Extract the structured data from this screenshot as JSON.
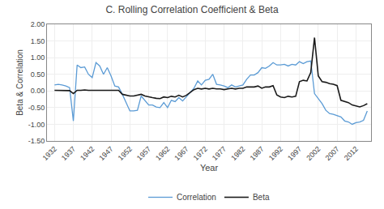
{
  "chart_data": {
    "type": "line",
    "title": "C. Rolling Correlation Coefficient & Beta",
    "xlabel": "Year",
    "ylabel": "Beta & Correlation",
    "x": [
      1932,
      1933,
      1934,
      1935,
      1936,
      1937,
      1938,
      1939,
      1940,
      1941,
      1942,
      1943,
      1944,
      1945,
      1946,
      1947,
      1948,
      1949,
      1950,
      1951,
      1952,
      1953,
      1954,
      1955,
      1956,
      1957,
      1958,
      1959,
      1960,
      1961,
      1962,
      1963,
      1964,
      1965,
      1966,
      1967,
      1968,
      1969,
      1970,
      1971,
      1972,
      1973,
      1974,
      1975,
      1976,
      1977,
      1978,
      1979,
      1980,
      1981,
      1982,
      1983,
      1984,
      1985,
      1986,
      1987,
      1988,
      1989,
      1990,
      1991,
      1992,
      1993,
      1994,
      1995,
      1996,
      1997,
      1998,
      1999,
      2000,
      2001,
      2002,
      2003,
      2004,
      2005,
      2006,
      2007,
      2008,
      2009,
      2010,
      2011,
      2012,
      2013,
      2014,
      2015
    ],
    "series": [
      {
        "name": "Correlation",
        "color": "#5b9bd5",
        "values": [
          0.18,
          0.2,
          0.18,
          0.15,
          0.1,
          -0.9,
          0.78,
          0.7,
          0.72,
          0.5,
          0.4,
          0.85,
          0.75,
          0.5,
          0.7,
          0.45,
          0.15,
          0.12,
          -0.1,
          -0.35,
          -0.6,
          -0.6,
          -0.58,
          -0.15,
          -0.3,
          -0.42,
          -0.42,
          -0.48,
          -0.5,
          -0.35,
          -0.5,
          -0.28,
          -0.32,
          -0.2,
          -0.3,
          -0.18,
          -0.05,
          0.08,
          0.3,
          0.18,
          0.32,
          0.35,
          0.5,
          0.2,
          0.18,
          0.15,
          0.1,
          0.18,
          0.12,
          0.15,
          0.18,
          0.35,
          0.48,
          0.48,
          0.55,
          0.7,
          0.68,
          0.75,
          0.85,
          0.78,
          0.78,
          0.8,
          0.75,
          0.8,
          0.78,
          0.88,
          0.82,
          0.88,
          0.9,
          -0.08,
          -0.22,
          -0.38,
          -0.58,
          -0.68,
          -0.7,
          -0.75,
          -0.78,
          -0.9,
          -0.93,
          -1.0,
          -0.95,
          -0.93,
          -0.88,
          -0.6
        ]
      },
      {
        "name": "Beta",
        "color": "#1a1a1a",
        "values": [
          0.02,
          0.02,
          0.02,
          0.02,
          0.01,
          -0.08,
          0.02,
          0.02,
          0.03,
          0.02,
          0.02,
          0.03,
          0.02,
          0.02,
          0.02,
          0.03,
          0.03,
          0.02,
          -0.1,
          -0.12,
          -0.15,
          -0.15,
          -0.13,
          -0.1,
          -0.15,
          -0.18,
          -0.2,
          -0.22,
          -0.23,
          -0.18,
          -0.2,
          -0.16,
          -0.18,
          -0.13,
          -0.18,
          -0.13,
          -0.04,
          0.04,
          0.08,
          0.06,
          0.08,
          0.06,
          0.08,
          0.06,
          0.06,
          0.04,
          0.06,
          0.08,
          0.06,
          0.08,
          0.08,
          0.12,
          0.12,
          0.12,
          0.15,
          0.08,
          0.12,
          0.12,
          0.16,
          -0.12,
          -0.18,
          -0.2,
          -0.16,
          -0.18,
          -0.16,
          0.28,
          0.32,
          0.3,
          0.55,
          1.6,
          0.45,
          0.28,
          0.26,
          0.22,
          0.2,
          0.16,
          -0.28,
          -0.32,
          -0.35,
          -0.42,
          -0.45,
          -0.48,
          -0.44,
          -0.38
        ]
      }
    ],
    "xlim": [
      1930,
      2016
    ],
    "xticks": [
      1932,
      1937,
      1942,
      1947,
      1952,
      1957,
      1962,
      1967,
      1972,
      1977,
      1982,
      1987,
      1992,
      1997,
      2002,
      2007,
      2012
    ],
    "ylim": [
      -1.5,
      2.0
    ],
    "yticks": [
      {
        "value": -1.5,
        "label": "-1.50"
      },
      {
        "value": -1.0,
        "label": "-1.00"
      },
      {
        "value": -0.5,
        "label": "-0.50"
      },
      {
        "value": 0.0,
        "label": "0.00"
      },
      {
        "value": 0.5,
        "label": "0.50"
      },
      {
        "value": 1.0,
        "label": "1.00"
      },
      {
        "value": 1.5,
        "label": "1.50"
      },
      {
        "value": 2.0,
        "label": "2.00"
      }
    ],
    "grid": true,
    "legend": "bottom"
  }
}
